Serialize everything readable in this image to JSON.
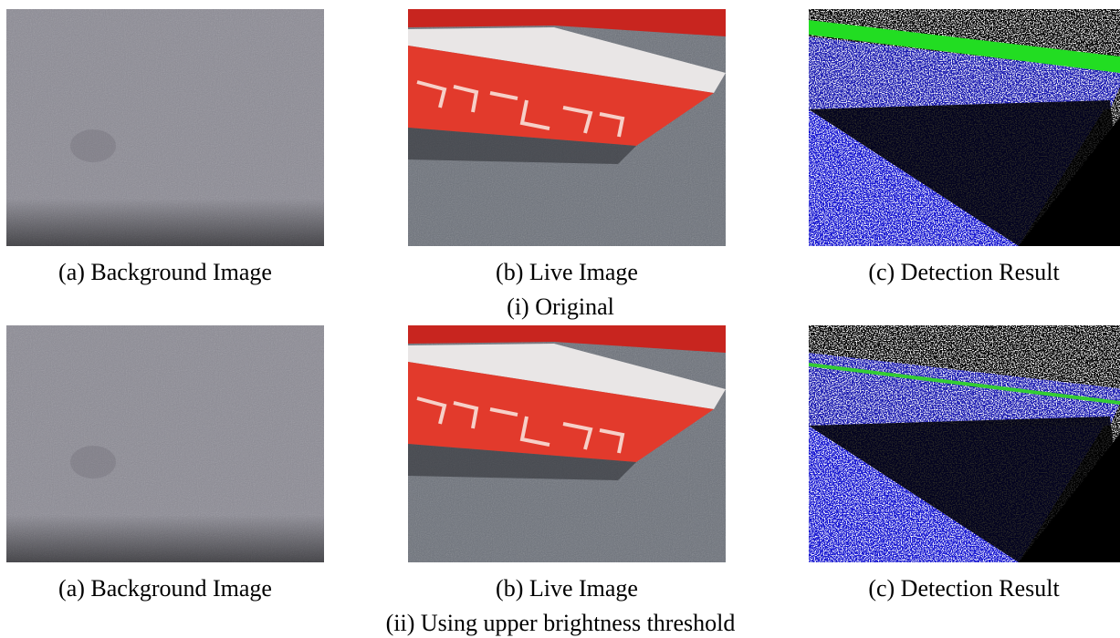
{
  "figure": {
    "rows": [
      {
        "caption": "(i) Original",
        "panels": [
          {
            "label": "(a) Background Image"
          },
          {
            "label": "(b) Live Image"
          },
          {
            "label": "(c) Detection Result"
          }
        ]
      },
      {
        "caption": "(ii) Using upper brightness threshold",
        "panels": [
          {
            "label": "(a) Background Image"
          },
          {
            "label": "(b) Live Image"
          },
          {
            "label": "(c) Detection Result"
          }
        ]
      }
    ]
  }
}
